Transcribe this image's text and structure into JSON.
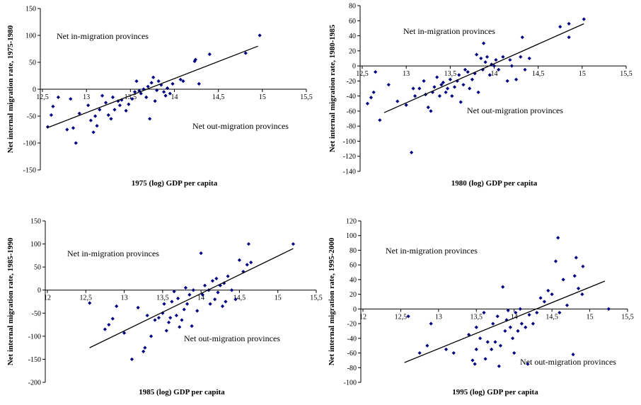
{
  "chart_data": [
    {
      "type": "scatter",
      "xlabel": "1975 (log) GDP per capita",
      "ylabel": "Net internal migration rate, 1975-1980",
      "annotations": [
        "Net in-migration provinces",
        "Net out-migration provinces"
      ],
      "color": "#000080",
      "trend_color": "#000000",
      "xlim": [
        12.5,
        15.5
      ],
      "ylim": [
        -150,
        150
      ],
      "xticks": [
        {
          "value": 12.5,
          "label": "12,5"
        },
        13,
        {
          "value": 13.5,
          "label": "13,5"
        },
        14,
        {
          "value": 14.5,
          "label": "14,5"
        },
        15,
        {
          "value": 15.5,
          "label": "15,5"
        }
      ],
      "yticks": [
        -150,
        -100,
        -50,
        0,
        50,
        100,
        150
      ],
      "x": [
        12.56,
        12.6,
        12.62,
        12.68,
        12.78,
        12.82,
        12.85,
        12.88,
        12.92,
        13.02,
        13.05,
        13.08,
        13.1,
        13.12,
        13.15,
        13.18,
        13.22,
        13.25,
        13.28,
        13.3,
        13.32,
        13.36,
        13.38,
        13.4,
        13.45,
        13.48,
        13.52,
        13.55,
        13.57,
        13.6,
        13.62,
        13.65,
        13.68,
        13.7,
        13.72,
        13.74,
        13.76,
        13.78,
        13.8,
        13.82,
        13.85,
        13.88,
        13.9,
        13.92,
        13.95,
        13.98,
        14.07,
        14.1,
        14.23,
        14.24,
        14.28,
        14.4,
        14.81,
        14.97
      ],
      "values": [
        -70,
        -48,
        -32,
        -15,
        -75,
        -18,
        -72,
        -100,
        -45,
        -30,
        -58,
        -80,
        -50,
        -68,
        -38,
        -12,
        -25,
        -48,
        -55,
        -15,
        -38,
        -22,
        -30,
        -20,
        -40,
        -28,
        -18,
        -5,
        15,
        -3,
        -8,
        0,
        -15,
        5,
        -55,
        12,
        22,
        -22,
        -2,
        15,
        8,
        -5,
        -12,
        2,
        -8,
        10,
        18,
        15,
        52,
        55,
        10,
        65,
        67,
        100
      ],
      "trend": {
        "x": [
          12.55,
          14.95
        ],
        "values": [
          -72,
          80
        ]
      }
    },
    {
      "type": "scatter",
      "xlabel": "1980 (log) GDP per capita",
      "ylabel": "Net internal migration rate, 1980-1985",
      "annotations": [
        "Net in-migration provinces",
        "Net out-migration provinces"
      ],
      "color": "#000080",
      "trend_color": "#000000",
      "xlim": [
        12.5,
        15.5
      ],
      "ylim": [
        -140,
        80
      ],
      "xticks": [
        {
          "value": 12.5,
          "label": "12,5"
        },
        13,
        {
          "value": 13.5,
          "label": "13,5"
        },
        14,
        {
          "value": 14.5,
          "label": "14,5"
        },
        15,
        {
          "value": 15.5,
          "label": "15,5"
        }
      ],
      "yticks": [
        -140,
        -120,
        -100,
        -80,
        -60,
        -40,
        -20,
        0,
        20,
        40,
        60,
        80
      ],
      "x": [
        12.56,
        12.6,
        12.63,
        12.65,
        12.7,
        12.8,
        12.9,
        13.0,
        13.06,
        13.08,
        13.1,
        13.15,
        13.2,
        13.22,
        13.25,
        13.28,
        13.3,
        13.32,
        13.35,
        13.38,
        13.4,
        13.42,
        13.45,
        13.47,
        13.5,
        13.52,
        13.55,
        13.58,
        13.6,
        13.62,
        13.65,
        13.67,
        13.7,
        13.72,
        13.75,
        13.78,
        13.8,
        13.82,
        13.85,
        13.87,
        13.88,
        13.9,
        13.92,
        13.95,
        13.97,
        14.0,
        14.02,
        14.05,
        14.1,
        14.15,
        14.18,
        14.2,
        14.25,
        14.3,
        14.32,
        14.35,
        14.4,
        14.75,
        14.85,
        14.85,
        15.02
      ],
      "values": [
        -50,
        -42,
        -35,
        -8,
        -72,
        -25,
        -47,
        -52,
        -115,
        -30,
        -40,
        -30,
        -20,
        -38,
        -55,
        -60,
        -35,
        -28,
        -15,
        -40,
        -25,
        -22,
        -35,
        -30,
        -18,
        -40,
        -28,
        -20,
        -12,
        -48,
        -25,
        -5,
        -8,
        -30,
        -18,
        -10,
        15,
        -35,
        10,
        -5,
        30,
        5,
        12,
        -12,
        2,
        0,
        8,
        -5,
        12,
        -20,
        8,
        0,
        -18,
        12,
        38,
        -5,
        10,
        52,
        56,
        38,
        62
      ],
      "trend": {
        "x": [
          12.75,
          15.02
        ],
        "values": [
          -62,
          56
        ]
      }
    },
    {
      "type": "scatter",
      "xlabel": "1985 (log) GDP per capita",
      "ylabel": "Net internal migration rate, 1985-1990",
      "annotations": [
        "Net in-migration provinces",
        "Net out-migration provinces"
      ],
      "color": "#000080",
      "trend_color": "#000000",
      "xlim": [
        12,
        15.5
      ],
      "ylim": [
        -200,
        150
      ],
      "xticks": [
        12,
        {
          "value": 12.5,
          "label": "12,5"
        },
        13,
        {
          "value": 13.5,
          "label": "13,5"
        },
        14,
        {
          "value": 14.5,
          "label": "14,5"
        },
        15,
        {
          "value": 15.5,
          "label": "15,5"
        }
      ],
      "yticks": [
        -200,
        -150,
        -100,
        -50,
        0,
        50,
        100,
        150
      ],
      "x": [
        12.55,
        12.75,
        12.8,
        12.85,
        12.9,
        13.0,
        13.1,
        13.18,
        13.25,
        13.27,
        13.3,
        13.35,
        13.4,
        13.45,
        13.5,
        13.52,
        13.55,
        13.58,
        13.6,
        13.62,
        13.65,
        13.68,
        13.7,
        13.72,
        13.75,
        13.78,
        13.8,
        13.82,
        13.85,
        13.88,
        13.9,
        13.95,
        14.0,
        14.02,
        14.05,
        14.1,
        14.12,
        14.15,
        14.18,
        14.2,
        14.22,
        14.25,
        14.28,
        14.3,
        14.32,
        14.35,
        14.4,
        14.45,
        14.5,
        14.55,
        14.6,
        14.62,
        14.65,
        15.2
      ],
      "values": [
        -28,
        -85,
        -75,
        -62,
        -35,
        -93,
        -150,
        -38,
        -133,
        -125,
        -55,
        -100,
        -65,
        -60,
        -50,
        -30,
        -88,
        -70,
        -60,
        -25,
        -3,
        -55,
        -18,
        -80,
        -65,
        -42,
        5,
        -30,
        -10,
        -78,
        0,
        -45,
        80,
        -10,
        10,
        0,
        -30,
        20,
        -20,
        25,
        -5,
        10,
        -35,
        15,
        -25,
        30,
        0,
        -20,
        65,
        40,
        55,
        100,
        60,
        100
      ],
      "trend": {
        "x": [
          12.55,
          15.2
        ],
        "values": [
          -125,
          90
        ]
      }
    },
    {
      "type": "scatter",
      "xlabel": "1995 (log) GDP per capita",
      "ylabel": "Net internal migration rate, 1995-2000",
      "annotations": [
        "Net in-migration provinces",
        "Net out-migration provinces"
      ],
      "color": "#000080",
      "trend_color": "#000000",
      "xlim": [
        12,
        15.5
      ],
      "ylim": [
        -100,
        120
      ],
      "xticks": [
        12,
        {
          "value": 12.5,
          "label": "12,5"
        },
        13,
        {
          "value": 13.5,
          "label": "13,5"
        },
        14,
        {
          "value": 14.5,
          "label": "14,5"
        },
        15,
        {
          "value": 15.5,
          "label": "15,5"
        }
      ],
      "yticks": [
        -100,
        -80,
        -60,
        -40,
        -20,
        0,
        20,
        40,
        60,
        80,
        100,
        120
      ],
      "x": [
        12.6,
        12.75,
        12.85,
        12.9,
        13.1,
        13.2,
        13.4,
        13.45,
        13.48,
        13.5,
        13.5,
        13.55,
        13.6,
        13.62,
        13.65,
        13.7,
        13.72,
        13.75,
        13.78,
        13.8,
        13.82,
        13.85,
        13.88,
        13.9,
        13.92,
        13.95,
        13.98,
        14.0,
        14.02,
        14.05,
        14.08,
        14.1,
        14.15,
        14.18,
        14.2,
        14.25,
        14.3,
        14.35,
        14.4,
        14.45,
        14.5,
        14.55,
        14.58,
        14.6,
        14.65,
        14.7,
        14.78,
        14.8,
        14.82,
        14.85,
        14.9,
        14.91,
        15.25
      ],
      "values": [
        -10,
        -60,
        -50,
        -20,
        -55,
        -60,
        -35,
        -70,
        -75,
        -55,
        -25,
        -40,
        -5,
        -68,
        -45,
        -55,
        -20,
        -45,
        -10,
        -78,
        -50,
        30,
        -30,
        -15,
        -2,
        -25,
        -40,
        -60,
        -5,
        -30,
        0,
        -20,
        -25,
        -75,
        -8,
        -20,
        -5,
        15,
        10,
        25,
        20,
        65,
        97,
        -5,
        40,
        5,
        -62,
        45,
        70,
        28,
        20,
        58,
        0
      ],
      "trend": {
        "x": [
          12.55,
          15.2
        ],
        "values": [
          -73,
          38
        ]
      }
    }
  ]
}
